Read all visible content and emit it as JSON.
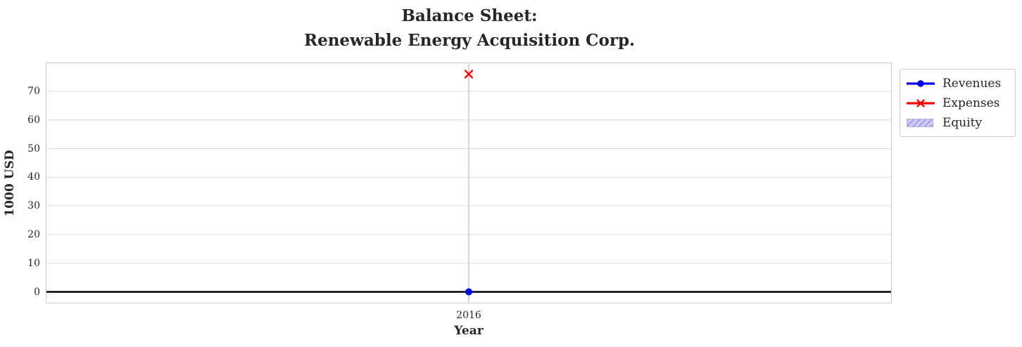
{
  "title": {
    "text": "Balance Sheet:\nRenewable Energy Acquisition Corp."
  },
  "axes": {
    "x_label": "Year",
    "y_label": "1000 USD",
    "x_tick_labels": [
      "2016"
    ],
    "y_tick_labels": [
      "0",
      "10",
      "20",
      "30",
      "40",
      "50",
      "60",
      "70"
    ]
  },
  "legend": {
    "items": [
      {
        "label": "Revenues",
        "swatch": "line-circle-marker",
        "color": "#0000f0"
      },
      {
        "label": "Expenses",
        "swatch": "line-x-marker",
        "color": "#ff0000"
      },
      {
        "label": "Equity",
        "swatch": "hatched-patch",
        "fill": "#ccccf5",
        "hatch_color": "#9a9ae0",
        "border": "#b2b2ec"
      }
    ]
  },
  "chart_data": {
    "type": "line",
    "title": "Balance Sheet:\nRenewable Energy Acquisition Corp.",
    "xlabel": "Year",
    "ylabel": "1000 USD",
    "x": [
      2016
    ],
    "series": [
      {
        "name": "Revenues",
        "type": "line",
        "marker": "circle",
        "color": "#0000f0",
        "values": [
          0
        ]
      },
      {
        "name": "Expenses",
        "type": "line",
        "marker": "x",
        "color": "#ff0000",
        "values": [
          76
        ]
      },
      {
        "name": "Equity",
        "type": "area",
        "fill": "#ccccf5",
        "hatch": "///",
        "values": [
          null
        ]
      }
    ],
    "yticks": [
      0,
      10,
      20,
      30,
      40,
      50,
      60,
      70
    ],
    "ylim": [
      -3.8,
      79.8
    ],
    "x_positions_fraction": [
      0.5
    ],
    "grid": true,
    "zero_line": true,
    "legend_position": "outside upper right"
  },
  "style": {
    "background": "#ffffff",
    "grid_color": "#dcdcdc",
    "x_grid_color": "#c6c6e0",
    "spine_color": "#cccccc",
    "text_color": "#262626",
    "zero_line_color": "#000000"
  }
}
